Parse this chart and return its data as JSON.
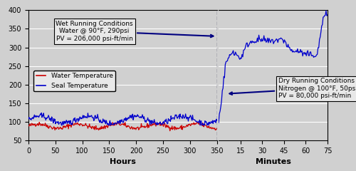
{
  "title": "",
  "ylim": [
    50,
    400
  ],
  "yticks": [
    50,
    100,
    150,
    200,
    250,
    300,
    350,
    400
  ],
  "hours_xlim": [
    0,
    350
  ],
  "hours_xticks": [
    0,
    50,
    100,
    150,
    200,
    250,
    300,
    350
  ],
  "minutes_xlim": [
    0,
    75
  ],
  "minutes_xticks": [
    15,
    30,
    45,
    60,
    75
  ],
  "bg_color": "#d0d0d0",
  "water_temp_color": "#cc0000",
  "seal_temp_color": "#0000cc",
  "wet_box_text": "Wet Running Conditions\nWater @ 90°F, 290psi\nPV = 206,000 psi-ft/min",
  "dry_box_text": "Dry Running Conditions\nNitrogen @ 100°F, 50psi\nPV = 80,000 psi-ft/min",
  "xlabel_left": "Hours",
  "xlabel_right": "Minutes",
  "legend_water": "Water Temperature",
  "legend_seal": "Seal Temperature",
  "divider_color": "#333355",
  "arrow_color": "#000080",
  "grid_color": "#ffffff"
}
